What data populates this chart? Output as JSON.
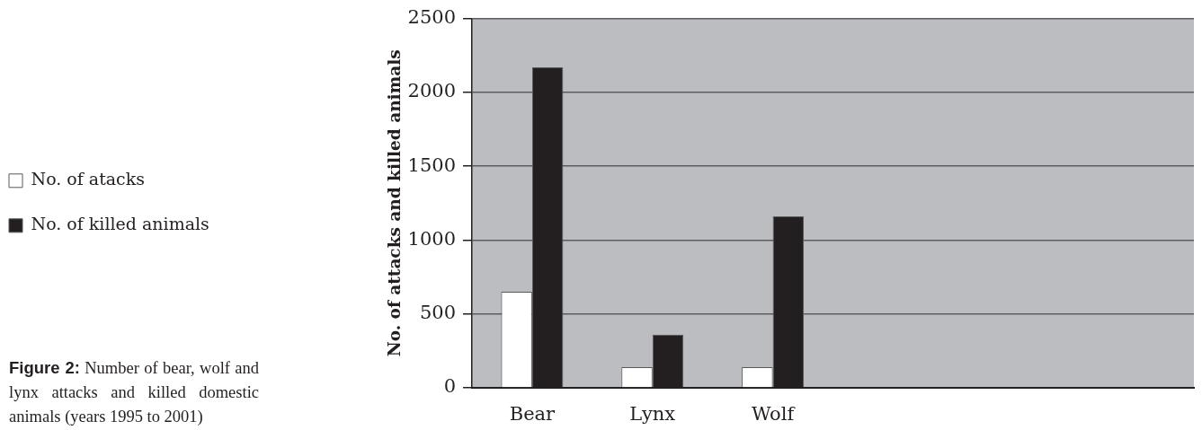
{
  "chart_data": {
    "type": "bar",
    "ylabel": "No. of attacks and killed animals",
    "annotations": [
      "Figure 2: Number of bear, wolf and lynx attacks and killed domestic animals (years 1995 to 2001)"
    ],
    "categories": [
      "Bear",
      "Lynx",
      "Wolf",
      null,
      null,
      null
    ],
    "series": [
      {
        "name": "No. of atacks",
        "color": "#ffffff",
        "values": [
          650,
          140,
          140,
          null,
          null,
          null
        ]
      },
      {
        "name": "No. of killed animals",
        "color": "#231f20",
        "values": [
          2170,
          360,
          1160,
          null,
          null,
          null
        ]
      }
    ],
    "ylim": [
      0,
      2500
    ],
    "yticks": [
      0,
      500,
      1000,
      1500,
      2000,
      2500
    ],
    "grid": "y",
    "legend": "left"
  }
}
